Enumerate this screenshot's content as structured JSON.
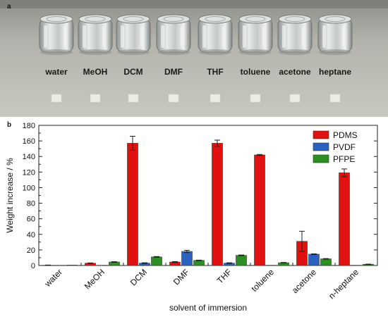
{
  "photo": {
    "panel_label": "a",
    "vial_labels": [
      "water",
      "MeOH",
      "DCM",
      "DMF",
      "THF",
      "toluene",
      "acetone",
      "heptane"
    ]
  },
  "chart_data": {
    "panel_label": "b",
    "type": "bar",
    "categories": [
      "water",
      "MeOH",
      "DCM",
      "DMF",
      "THF",
      "toluene",
      "acetone",
      "n-heptane"
    ],
    "series": [
      {
        "name": "PDMS",
        "color": "#e0110f",
        "values": [
          0.3,
          3,
          157,
          4.5,
          157,
          142,
          31,
          119
        ],
        "errors": [
          0.3,
          0.3,
          9,
          0.5,
          4,
          0.6,
          13,
          5
        ]
      },
      {
        "name": "PVDF",
        "color": "#2b62bf",
        "values": [
          0.3,
          0.3,
          3,
          18,
          3,
          0.3,
          14.5,
          0.3
        ],
        "errors": [
          0.2,
          0.2,
          0.5,
          1.5,
          0.5,
          0.2,
          0.5,
          0.2
        ]
      },
      {
        "name": "PFPE",
        "color": "#2d8f22",
        "values": [
          0.5,
          4.5,
          11,
          6.5,
          13,
          3.5,
          8.5,
          1.5
        ],
        "errors": [
          0.2,
          0.4,
          0.5,
          0.4,
          0.5,
          0.4,
          0.4,
          0.3
        ]
      }
    ],
    "xlabel": "solvent of immersion",
    "ylabel": "Weight increase / %",
    "ylim": [
      0,
      180
    ],
    "yticks": [
      0,
      20,
      40,
      60,
      80,
      100,
      120,
      140,
      160,
      180
    ],
    "grid": false,
    "legend_position": "top-right"
  }
}
